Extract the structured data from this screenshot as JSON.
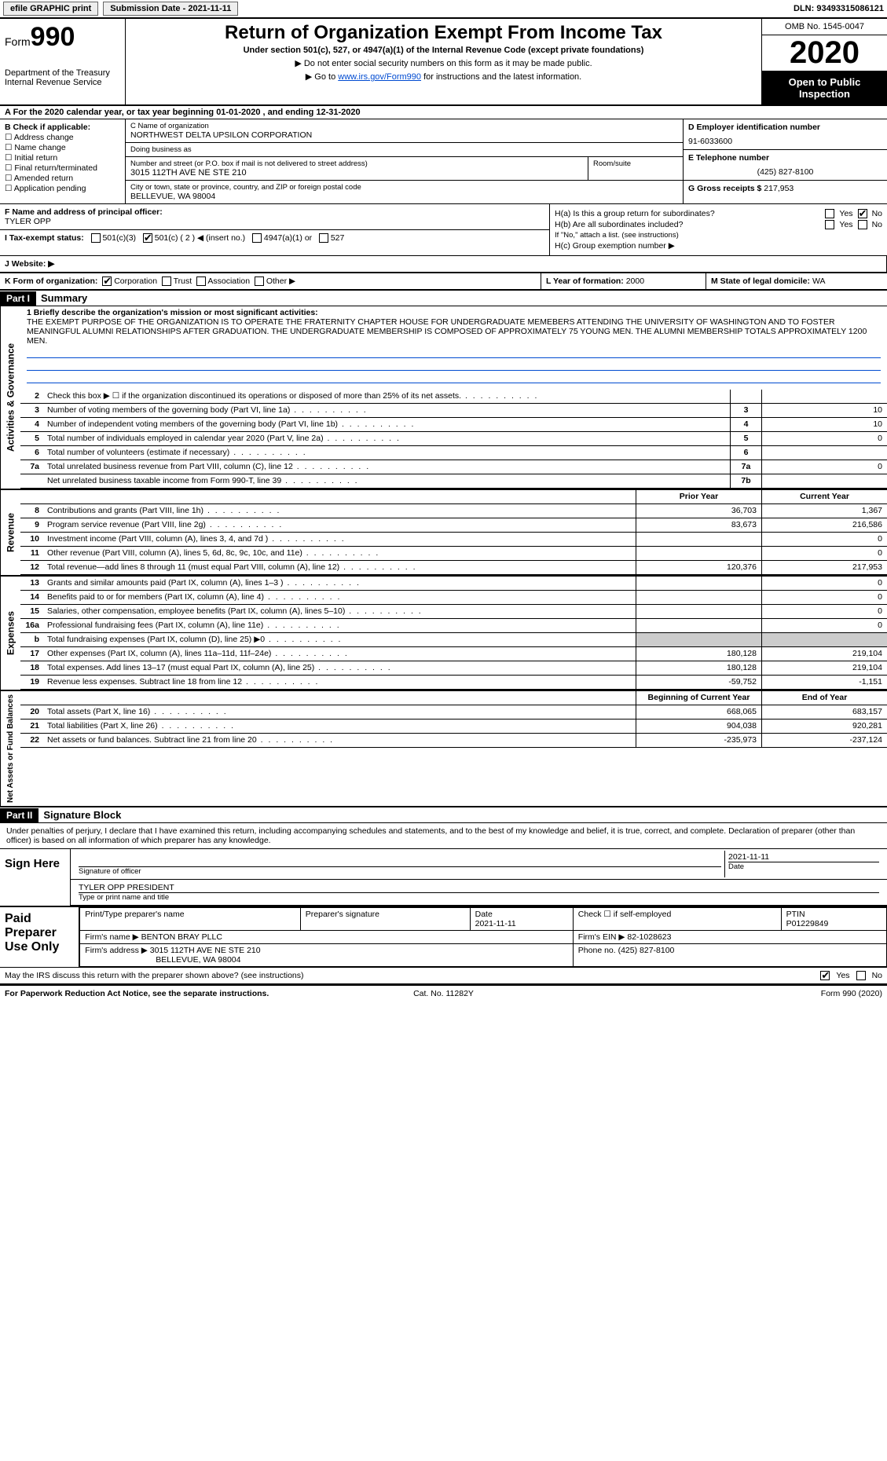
{
  "topbar": {
    "efile": "efile GRAPHIC print",
    "submission_label": "Submission Date - ",
    "submission_date": "2021-11-11",
    "dln_label": "DLN: ",
    "dln": "93493315086121"
  },
  "header": {
    "form_label": "Form",
    "form_num": "990",
    "dept": "Department of the Treasury\nInternal Revenue Service",
    "title": "Return of Organization Exempt From Income Tax",
    "sub": "Under section 501(c), 527, or 4947(a)(1) of the Internal Revenue Code (except private foundations)",
    "note1": "▶ Do not enter social security numbers on this form as it may be made public.",
    "note2_pre": "▶ Go to ",
    "note2_link": "www.irs.gov/Form990",
    "note2_post": " for instructions and the latest information.",
    "omb": "OMB No. 1545-0047",
    "year": "2020",
    "inspect": "Open to Public Inspection"
  },
  "rowA": "A For the 2020 calendar year, or tax year beginning 01-01-2020   , and ending 12-31-2020",
  "colB": {
    "title": "B Check if applicable:",
    "items": [
      "Address change",
      "Name change",
      "Initial return",
      "Final return/terminated",
      "Amended return",
      "Application pending"
    ]
  },
  "colC": {
    "name_lbl": "C Name of organization",
    "name": "NORTHWEST DELTA UPSILON CORPORATION",
    "dba_lbl": "Doing business as",
    "dba": "",
    "street_lbl": "Number and street (or P.O. box if mail is not delivered to street address)",
    "street": "3015 112TH AVE NE STE 210",
    "suite_lbl": "Room/suite",
    "city_lbl": "City or town, state or province, country, and ZIP or foreign postal code",
    "city": "BELLEVUE, WA  98004"
  },
  "colD": {
    "ein_lbl": "D Employer identification number",
    "ein": "91-6033600",
    "tel_lbl": "E Telephone number",
    "tel": "(425) 827-8100",
    "gross_lbl": "G Gross receipts $ ",
    "gross": "217,953"
  },
  "rowF": {
    "lbl": "F  Name and address of principal officer:",
    "name": "TYLER OPP"
  },
  "rowH": {
    "ha": "H(a)  Is this a group return for subordinates?",
    "hb": "H(b)  Are all subordinates included?",
    "hb_note": "If \"No,\" attach a list. (see instructions)",
    "hc": "H(c)  Group exemption number ▶",
    "yes": "Yes",
    "no": "No"
  },
  "rowI": {
    "lbl": "I   Tax-exempt status:",
    "opts": [
      "501(c)(3)",
      "501(c) ( 2 ) ◀ (insert no.)",
      "4947(a)(1) or",
      "527"
    ]
  },
  "rowJ": {
    "lbl": "J   Website: ▶",
    "val": ""
  },
  "rowK": {
    "lbl": "K Form of organization:",
    "opts": [
      "Corporation",
      "Trust",
      "Association",
      "Other ▶"
    ]
  },
  "rowL": {
    "lbl": "L Year of formation: ",
    "val": "2000"
  },
  "rowM": {
    "lbl": "M State of legal domicile: ",
    "val": "WA"
  },
  "part1": {
    "hdr": "Part I",
    "title": "Summary"
  },
  "mission_lbl": "1   Briefly describe the organization's mission or most significant activities:",
  "mission": "THE EXEMPT PURPOSE OF THE ORGANIZATION IS TO OPERATE THE FRATERNITY CHAPTER HOUSE FOR UNDERGRADUATE MEMEBERS ATTENDING THE UNIVERSITY OF WASHINGTON AND TO FOSTER MEANINGFUL ALUMNI RELATIONSHIPS AFTER GRADUATION. THE UNDERGRADUATE MEMBERSHIP IS COMPOSED OF APPROXIMATELY 75 YOUNG MEN. THE ALUMNI MEMBERSHIP TOTALS APPROXIMATELY 1200 MEN.",
  "gov_lines": [
    {
      "n": "2",
      "d": "Check this box ▶ ☐  if the organization discontinued its operations or disposed of more than 25% of its net assets.",
      "box": "",
      "v": ""
    },
    {
      "n": "3",
      "d": "Number of voting members of the governing body (Part VI, line 1a)",
      "box": "3",
      "v": "10"
    },
    {
      "n": "4",
      "d": "Number of independent voting members of the governing body (Part VI, line 1b)",
      "box": "4",
      "v": "10"
    },
    {
      "n": "5",
      "d": "Total number of individuals employed in calendar year 2020 (Part V, line 2a)",
      "box": "5",
      "v": "0"
    },
    {
      "n": "6",
      "d": "Total number of volunteers (estimate if necessary)",
      "box": "6",
      "v": ""
    },
    {
      "n": "7a",
      "d": "Total unrelated business revenue from Part VIII, column (C), line 12",
      "box": "7a",
      "v": "0"
    },
    {
      "n": "",
      "d": "Net unrelated business taxable income from Form 990-T, line 39",
      "box": "7b",
      "v": ""
    }
  ],
  "rev_head": {
    "c1": "Prior Year",
    "c2": "Current Year"
  },
  "rev_lines": [
    {
      "n": "8",
      "d": "Contributions and grants (Part VIII, line 1h)",
      "c1": "36,703",
      "c2": "1,367"
    },
    {
      "n": "9",
      "d": "Program service revenue (Part VIII, line 2g)",
      "c1": "83,673",
      "c2": "216,586"
    },
    {
      "n": "10",
      "d": "Investment income (Part VIII, column (A), lines 3, 4, and 7d )",
      "c1": "",
      "c2": "0"
    },
    {
      "n": "11",
      "d": "Other revenue (Part VIII, column (A), lines 5, 6d, 8c, 9c, 10c, and 11e)",
      "c1": "",
      "c2": "0"
    },
    {
      "n": "12",
      "d": "Total revenue—add lines 8 through 11 (must equal Part VIII, column (A), line 12)",
      "c1": "120,376",
      "c2": "217,953"
    }
  ],
  "exp_lines": [
    {
      "n": "13",
      "d": "Grants and similar amounts paid (Part IX, column (A), lines 1–3 )",
      "c1": "",
      "c2": "0"
    },
    {
      "n": "14",
      "d": "Benefits paid to or for members (Part IX, column (A), line 4)",
      "c1": "",
      "c2": "0"
    },
    {
      "n": "15",
      "d": "Salaries, other compensation, employee benefits (Part IX, column (A), lines 5–10)",
      "c1": "",
      "c2": "0"
    },
    {
      "n": "16a",
      "d": "Professional fundraising fees (Part IX, column (A), line 11e)",
      "c1": "",
      "c2": "0"
    },
    {
      "n": "b",
      "d": "Total fundraising expenses (Part IX, column (D), line 25) ▶0",
      "c1": "—",
      "c2": "—"
    },
    {
      "n": "17",
      "d": "Other expenses (Part IX, column (A), lines 11a–11d, 11f–24e)",
      "c1": "180,128",
      "c2": "219,104"
    },
    {
      "n": "18",
      "d": "Total expenses. Add lines 13–17 (must equal Part IX, column (A), line 25)",
      "c1": "180,128",
      "c2": "219,104"
    },
    {
      "n": "19",
      "d": "Revenue less expenses. Subtract line 18 from line 12",
      "c1": "-59,752",
      "c2": "-1,151"
    }
  ],
  "na_head": {
    "c1": "Beginning of Current Year",
    "c2": "End of Year"
  },
  "na_lines": [
    {
      "n": "20",
      "d": "Total assets (Part X, line 16)",
      "c1": "668,065",
      "c2": "683,157"
    },
    {
      "n": "21",
      "d": "Total liabilities (Part X, line 26)",
      "c1": "904,038",
      "c2": "920,281"
    },
    {
      "n": "22",
      "d": "Net assets or fund balances. Subtract line 21 from line 20",
      "c1": "-235,973",
      "c2": "-237,124"
    }
  ],
  "part2": {
    "hdr": "Part II",
    "title": "Signature Block"
  },
  "sig": {
    "decl": "Under penalties of perjury, I declare that I have examined this return, including accompanying schedules and statements, and to the best of my knowledge and belief, it is true, correct, and complete. Declaration of preparer (other than officer) is based on all information of which preparer has any knowledge.",
    "sign_here": "Sign Here",
    "sig_of_officer": "Signature of officer",
    "date": "2021-11-11",
    "name_title": "TYLER OPP  PRESIDENT",
    "name_title_lbl": "Type or print name and title"
  },
  "prep": {
    "lbl": "Paid Preparer Use Only",
    "h1": "Print/Type preparer's name",
    "h2": "Preparer's signature",
    "h3": "Date",
    "h3v": "2021-11-11",
    "h4": "Check ☐ if self-employed",
    "h5": "PTIN",
    "h5v": "P01229849",
    "firm_lbl": "Firm's name    ▶ ",
    "firm": "BENTON BRAY PLLC",
    "ein_lbl": "Firm's EIN ▶ ",
    "ein": "82-1028623",
    "addr_lbl": "Firm's address ▶ ",
    "addr": "3015 112TH AVE NE STE 210",
    "addr2": "BELLEVUE, WA  98004",
    "phone_lbl": "Phone no. ",
    "phone": "(425) 827-8100"
  },
  "discuss": "May the IRS discuss this return with the preparer shown above? (see instructions)",
  "footer": {
    "l": "For Paperwork Reduction Act Notice, see the separate instructions.",
    "m": "Cat. No. 11282Y",
    "r": "Form 990 (2020)"
  },
  "tabs": {
    "gov": "Activities & Governance",
    "rev": "Revenue",
    "exp": "Expenses",
    "na": "Net Assets or Fund Balances"
  }
}
